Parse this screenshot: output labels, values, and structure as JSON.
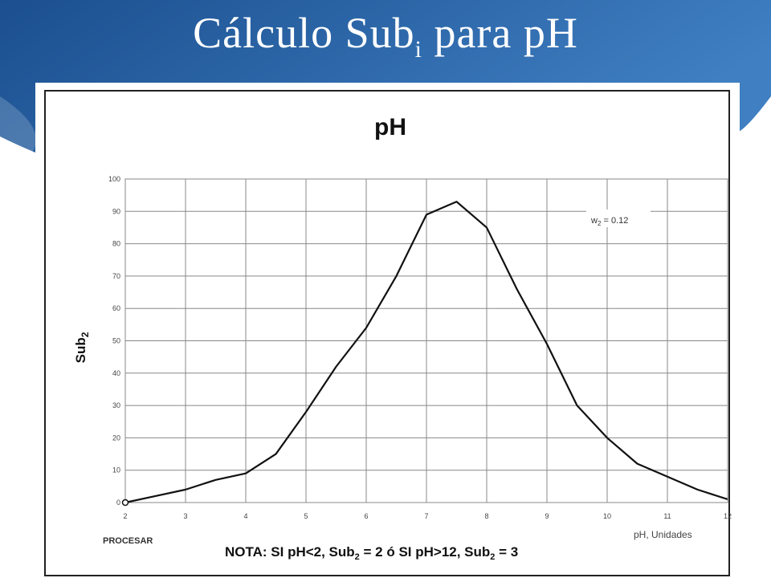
{
  "slide": {
    "title_main": "Cálculo Sub",
    "title_sub": "i",
    "title_tail": " para pH"
  },
  "colors": {
    "band_dark": "#1b4f8f",
    "band_light": "#3f7fc2",
    "curve": "#111111",
    "grid": "#888888"
  },
  "chart_data": {
    "type": "line",
    "title": "pH",
    "xlabel": "pH, Unidades",
    "ylabel": "Sub",
    "ylabel_sub": "2",
    "xlim": [
      2,
      12
    ],
    "ylim": [
      0,
      100
    ],
    "x_ticks": [
      "2",
      "3",
      "4",
      "5",
      "6",
      "7",
      "8",
      "9",
      "10",
      "11",
      "12"
    ],
    "y_ticks": [
      "0",
      "10",
      "20",
      "30",
      "40",
      "50",
      "60",
      "70",
      "80",
      "90",
      "100"
    ],
    "grid": true,
    "annotation": {
      "prefix": "w",
      "sub": "2",
      "rest": " = 0.12"
    },
    "footer_left": "PROCESAR",
    "note": {
      "p1": "NOTA: SI pH<2, Sub",
      "s1": "2",
      "p2": " = 2 ó SI pH>12, Sub",
      "s2": "2",
      "p3": " = 3"
    },
    "series": [
      {
        "x": [
          2,
          2.5,
          3,
          3.5,
          4,
          4.5,
          5,
          5.5,
          6,
          6.5,
          7,
          7.5,
          8,
          8.5,
          9,
          9.5,
          10,
          10.5,
          11,
          11.5,
          12
        ],
        "y": [
          0,
          2,
          4,
          7,
          9,
          15,
          28,
          42,
          54,
          70,
          89,
          93,
          85,
          66,
          49,
          30,
          20,
          12,
          8,
          4,
          1
        ]
      }
    ]
  }
}
